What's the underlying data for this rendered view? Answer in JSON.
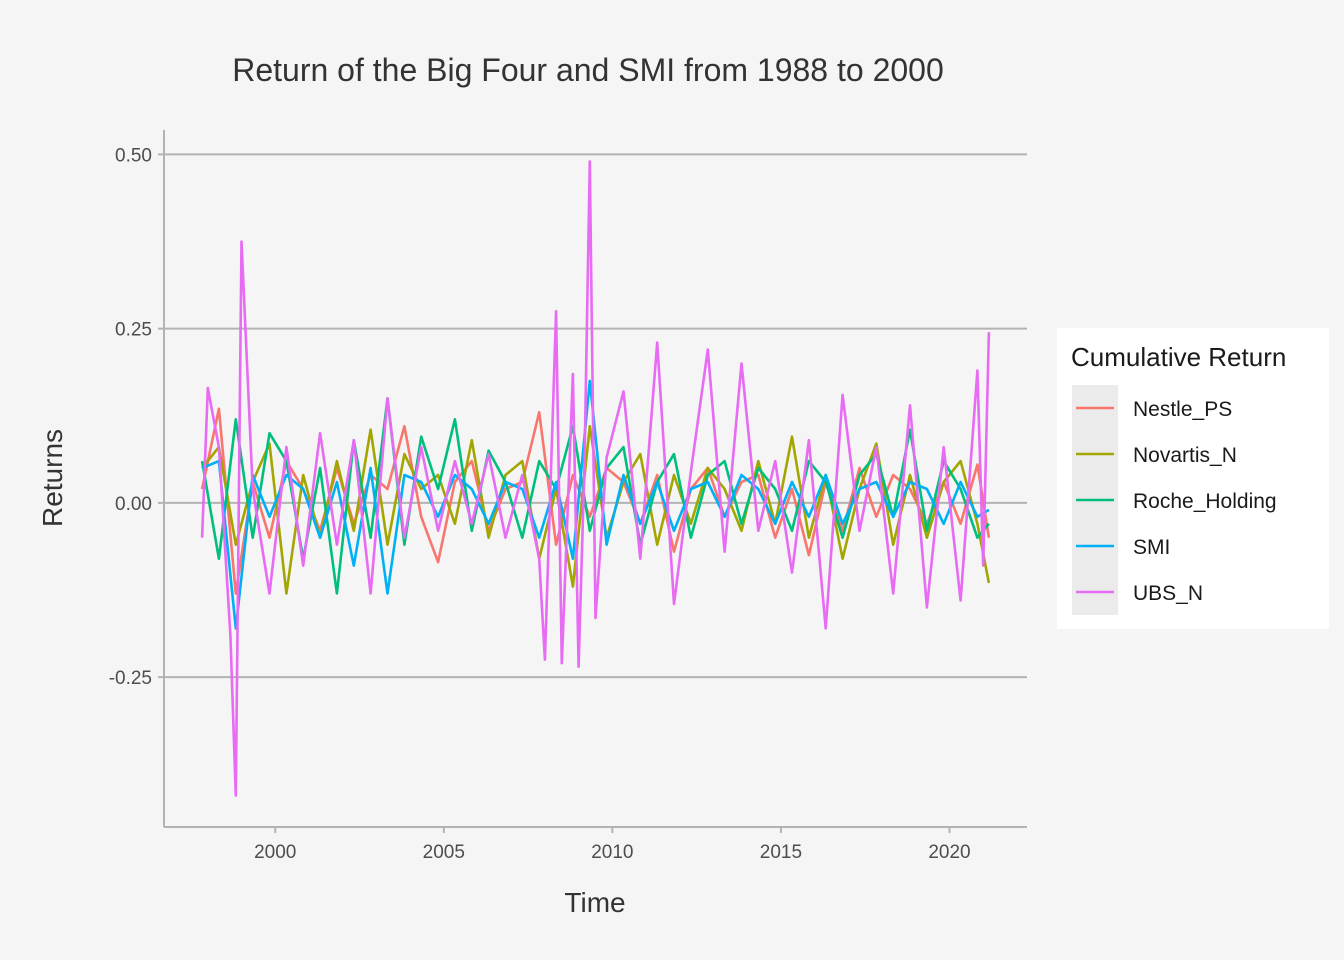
{
  "chart_data": {
    "type": "line",
    "title": "Return of the Big Four and SMI from 1988 to 2000",
    "xlabel": "Time",
    "ylabel": "Returns",
    "xlim": [
      1996.7,
      2022.3
    ],
    "ylim": [
      -0.465,
      0.535
    ],
    "x_ticks": [
      2000,
      2005,
      2010,
      2015,
      2020
    ],
    "x_tick_labels": [
      "2000",
      "2005",
      "2010",
      "2015",
      "2020"
    ],
    "y_ticks": [
      -0.25,
      0,
      0.25,
      0.5
    ],
    "y_tick_labels": [
      "-0.25",
      "0.00",
      "0.25",
      "0.50"
    ],
    "grid": "horizontal major",
    "legend": {
      "title": "Cumulative Return",
      "position": "right"
    },
    "series": [
      {
        "name": "Nestle_PS",
        "color": "#F8766D",
        "x": [
          1997.83,
          1998.33,
          1998.83,
          1999.33,
          1999.83,
          2000.33,
          2000.83,
          2001.33,
          2001.83,
          2002.33,
          2002.83,
          2003.33,
          2003.83,
          2004.33,
          2004.83,
          2005.33,
          2005.83,
          2006.33,
          2006.83,
          2007.33,
          2007.83,
          2008.33,
          2008.83,
          2009.33,
          2009.83,
          2010.33,
          2010.83,
          2011.33,
          2011.83,
          2012.33,
          2012.83,
          2013.33,
          2013.83,
          2014.33,
          2014.83,
          2015.33,
          2015.83,
          2016.33,
          2016.83,
          2017.33,
          2017.83,
          2018.33,
          2018.83,
          2019.33,
          2019.83,
          2020.33,
          2020.83,
          2021.17
        ],
        "values": [
          0.02,
          0.135,
          -0.13,
          0.03,
          -0.05,
          0.06,
          0.02,
          -0.04,
          0.05,
          -0.03,
          0.04,
          0.02,
          0.11,
          -0.02,
          -0.085,
          0.03,
          0.06,
          -0.04,
          0.02,
          0.03,
          0.13,
          -0.06,
          0.04,
          -0.02,
          0.05,
          0.03,
          -0.03,
          0.04,
          -0.07,
          0.02,
          0.05,
          -0.02,
          0.03,
          0.04,
          -0.05,
          0.02,
          -0.075,
          0.03,
          -0.04,
          0.05,
          -0.02,
          0.04,
          0.02,
          -0.03,
          0.03,
          -0.03,
          0.055,
          -0.05
        ]
      },
      {
        "name": "Novartis_N",
        "color": "#A3A500",
        "x": [
          1997.83,
          1998.33,
          1998.83,
          1999.33,
          1999.83,
          2000.33,
          2000.83,
          2001.33,
          2001.83,
          2002.33,
          2002.83,
          2003.33,
          2003.83,
          2004.33,
          2004.83,
          2005.33,
          2005.83,
          2006.33,
          2006.83,
          2007.33,
          2007.83,
          2008.33,
          2008.83,
          2009.33,
          2009.83,
          2010.33,
          2010.83,
          2011.33,
          2011.83,
          2012.33,
          2012.83,
          2013.33,
          2013.83,
          2014.33,
          2014.83,
          2015.33,
          2015.83,
          2016.33,
          2016.83,
          2017.33,
          2017.83,
          2018.33,
          2018.83,
          2019.33,
          2019.83,
          2020.33,
          2020.83,
          2021.17
        ],
        "values": [
          0.05,
          0.08,
          -0.06,
          0.03,
          0.085,
          -0.13,
          0.04,
          -0.05,
          0.06,
          -0.04,
          0.105,
          -0.06,
          0.07,
          0.02,
          0.04,
          -0.03,
          0.09,
          -0.05,
          0.04,
          0.06,
          -0.08,
          0.02,
          -0.12,
          0.11,
          -0.05,
          0.03,
          0.07,
          -0.06,
          0.04,
          -0.03,
          0.05,
          0.02,
          -0.04,
          0.06,
          -0.03,
          0.095,
          -0.05,
          0.04,
          -0.08,
          0.02,
          0.085,
          -0.06,
          0.04,
          -0.05,
          0.03,
          0.06,
          -0.03,
          -0.115
        ]
      },
      {
        "name": "Roche_Holding",
        "color": "#00BF7D",
        "x": [
          1997.83,
          1998.33,
          1998.83,
          1999.33,
          1999.83,
          2000.33,
          2000.83,
          2001.33,
          2001.83,
          2002.33,
          2002.83,
          2003.33,
          2003.83,
          2004.33,
          2004.83,
          2005.33,
          2005.83,
          2006.33,
          2006.83,
          2007.33,
          2007.83,
          2008.33,
          2008.83,
          2009.33,
          2009.83,
          2010.33,
          2010.83,
          2011.33,
          2011.83,
          2012.33,
          2012.83,
          2013.33,
          2013.83,
          2014.33,
          2014.83,
          2015.33,
          2015.83,
          2016.33,
          2016.83,
          2017.33,
          2017.83,
          2018.33,
          2018.83,
          2019.33,
          2019.83,
          2020.33,
          2020.83,
          2021.17
        ],
        "values": [
          0.06,
          -0.08,
          0.12,
          -0.05,
          0.1,
          0.06,
          -0.08,
          0.05,
          -0.13,
          0.09,
          -0.05,
          0.15,
          -0.06,
          0.095,
          0.02,
          0.12,
          -0.04,
          0.075,
          0.03,
          -0.05,
          0.06,
          0.02,
          0.11,
          -0.04,
          0.05,
          0.08,
          -0.06,
          0.03,
          0.07,
          -0.05,
          0.04,
          0.06,
          -0.03,
          0.05,
          0.02,
          -0.04,
          0.06,
          0.03,
          -0.05,
          0.04,
          0.07,
          -0.02,
          0.105,
          -0.04,
          0.06,
          0.02,
          -0.05,
          -0.03
        ]
      },
      {
        "name": "SMI",
        "color": "#00B0F6",
        "x": [
          1997.83,
          1998.33,
          1998.83,
          1999.33,
          1999.83,
          2000.33,
          2000.83,
          2001.33,
          2001.83,
          2002.33,
          2002.83,
          2003.33,
          2003.83,
          2004.33,
          2004.83,
          2005.33,
          2005.83,
          2006.33,
          2006.83,
          2007.33,
          2007.83,
          2008.33,
          2008.83,
          2009.33,
          2009.83,
          2010.33,
          2010.83,
          2011.33,
          2011.83,
          2012.33,
          2012.83,
          2013.33,
          2013.83,
          2014.33,
          2014.83,
          2015.33,
          2015.83,
          2016.33,
          2016.83,
          2017.33,
          2017.83,
          2018.33,
          2018.83,
          2019.33,
          2019.83,
          2020.33,
          2020.83,
          2021.17
        ],
        "values": [
          0.05,
          0.06,
          -0.18,
          0.04,
          -0.02,
          0.04,
          0.02,
          -0.05,
          0.03,
          -0.09,
          0.05,
          -0.13,
          0.04,
          0.03,
          -0.02,
          0.04,
          0.02,
          -0.03,
          0.03,
          0.02,
          -0.05,
          0.03,
          -0.08,
          0.175,
          -0.06,
          0.04,
          -0.03,
          0.03,
          -0.04,
          0.02,
          0.03,
          -0.02,
          0.04,
          0.02,
          -0.03,
          0.03,
          -0.02,
          0.04,
          -0.03,
          0.02,
          0.03,
          -0.02,
          0.03,
          0.02,
          -0.03,
          0.03,
          -0.02,
          -0.01
        ]
      },
      {
        "name": "UBS_N",
        "color": "#E76BF3",
        "x": [
          1997.83,
          1998.0,
          1998.33,
          1998.67,
          1998.83,
          1999.0,
          1999.33,
          1999.83,
          2000.33,
          2000.83,
          2001.33,
          2001.83,
          2002.33,
          2002.83,
          2003.33,
          2003.83,
          2004.33,
          2004.83,
          2005.33,
          2005.83,
          2006.33,
          2006.83,
          2007.33,
          2007.83,
          2008.0,
          2008.33,
          2008.5,
          2008.83,
          2009.0,
          2009.17,
          2009.33,
          2009.5,
          2009.83,
          2010.33,
          2010.83,
          2011.33,
          2011.83,
          2012.33,
          2012.83,
          2013.33,
          2013.83,
          2014.33,
          2014.83,
          2015.33,
          2015.83,
          2016.33,
          2016.83,
          2017.33,
          2017.83,
          2018.33,
          2018.83,
          2019.33,
          2019.83,
          2020.33,
          2020.83,
          2021.0,
          2021.17
        ],
        "values": [
          -0.05,
          0.165,
          0.08,
          -0.19,
          -0.42,
          0.375,
          0.02,
          -0.13,
          0.08,
          -0.09,
          0.1,
          -0.06,
          0.09,
          -0.13,
          0.15,
          -0.05,
          0.08,
          -0.04,
          0.06,
          -0.03,
          0.07,
          -0.05,
          0.04,
          -0.08,
          -0.225,
          0.275,
          -0.23,
          0.185,
          -0.235,
          0.05,
          0.49,
          -0.165,
          0.065,
          0.16,
          -0.08,
          0.23,
          -0.145,
          0.045,
          0.22,
          -0.07,
          0.2,
          -0.04,
          0.06,
          -0.1,
          0.09,
          -0.18,
          0.155,
          -0.04,
          0.08,
          -0.13,
          0.14,
          -0.15,
          0.08,
          -0.14,
          0.19,
          -0.09,
          0.245
        ]
      }
    ]
  }
}
